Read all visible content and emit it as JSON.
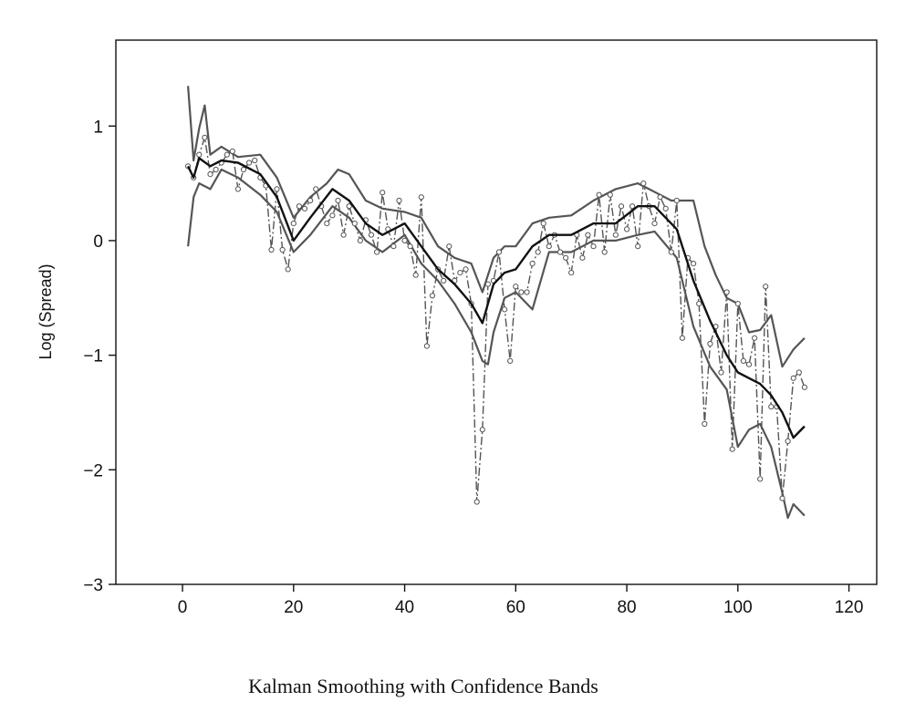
{
  "chart_data": {
    "type": "line",
    "title": "",
    "caption": "Kalman Smoothing with Confidence Bands",
    "xlabel": "",
    "ylabel": "Log (Spread)",
    "xlim": [
      -12,
      125
    ],
    "ylim": [
      -3,
      1.75
    ],
    "xticks": [
      0,
      20,
      40,
      60,
      80,
      100,
      120
    ],
    "yticks": [
      1,
      0,
      -1,
      -2,
      -3
    ],
    "xtick_labels": [
      "0",
      "20",
      "40",
      "60",
      "80",
      "100",
      "120"
    ],
    "ytick_labels": [
      "1",
      "0",
      "−1",
      "−2",
      "−3"
    ],
    "grid": false,
    "series": [
      {
        "style": "observed-dashdot-with-circles",
        "color": "#555555",
        "x": [
          1,
          2,
          3,
          4,
          5,
          6,
          7,
          8,
          9,
          10,
          11,
          12,
          13,
          14,
          15,
          16,
          17,
          18,
          19,
          20,
          21,
          22,
          23,
          24,
          25,
          26,
          27,
          28,
          29,
          30,
          31,
          32,
          33,
          34,
          35,
          36,
          37,
          38,
          39,
          40,
          41,
          42,
          43,
          44,
          45,
          46,
          47,
          48,
          49,
          50,
          51,
          52,
          53,
          54,
          55,
          56,
          57,
          58,
          59,
          60,
          61,
          62,
          63,
          64,
          65,
          66,
          67,
          68,
          69,
          70,
          71,
          72,
          73,
          74,
          75,
          76,
          77,
          78,
          79,
          80,
          81,
          82,
          83,
          84,
          85,
          86,
          87,
          88,
          89,
          90,
          91,
          92,
          93,
          94,
          95,
          96,
          97,
          98,
          99,
          100,
          101,
          102,
          103,
          104,
          105,
          106,
          107,
          108,
          109,
          110,
          111,
          112
        ],
        "y": [
          0.65,
          0.55,
          0.75,
          0.9,
          0.58,
          0.62,
          0.68,
          0.75,
          0.78,
          0.45,
          0.62,
          0.68,
          0.7,
          0.55,
          0.48,
          -0.08,
          0.45,
          -0.08,
          -0.25,
          0.15,
          0.3,
          0.28,
          0.35,
          0.45,
          0.3,
          0.15,
          0.22,
          0.35,
          0.05,
          0.3,
          0.15,
          0.0,
          0.18,
          0.05,
          -0.1,
          0.42,
          0.1,
          -0.05,
          0.35,
          0.0,
          -0.05,
          -0.3,
          0.38,
          -0.92,
          -0.48,
          -0.25,
          -0.35,
          -0.05,
          -0.35,
          -0.28,
          -0.25,
          -0.55,
          -2.28,
          -1.65,
          -0.38,
          -0.35,
          -0.1,
          -0.6,
          -1.05,
          -0.4,
          -0.45,
          -0.45,
          -0.2,
          -0.1,
          0.15,
          -0.05,
          0.05,
          -0.1,
          -0.15,
          -0.28,
          0.05,
          -0.15,
          0.05,
          -0.05,
          0.4,
          -0.1,
          0.4,
          0.05,
          0.3,
          0.1,
          0.3,
          -0.05,
          0.5,
          0.3,
          0.15,
          0.38,
          0.28,
          -0.1,
          0.35,
          -0.85,
          -0.15,
          -0.2,
          -0.55,
          -1.6,
          -0.9,
          -0.75,
          -1.15,
          -0.45,
          -1.82,
          -0.55,
          -1.05,
          -1.08,
          -0.85,
          -2.08,
          -0.4,
          -1.45,
          -1.45,
          -2.25,
          -1.75,
          -1.2,
          -1.15,
          -1.28
        ]
      },
      {
        "style": "smoothed",
        "color": "#111111",
        "x": [
          1,
          2,
          3,
          5,
          7,
          10,
          14,
          17,
          20,
          23,
          27,
          30,
          33,
          36,
          40,
          43,
          46,
          49,
          52,
          54,
          56,
          58,
          60,
          63,
          66,
          70,
          74,
          78,
          82,
          85,
          89,
          92,
          95,
          98,
          100,
          102,
          104,
          106,
          108,
          110,
          112
        ],
        "y": [
          0.65,
          0.55,
          0.72,
          0.65,
          0.7,
          0.68,
          0.58,
          0.38,
          0.0,
          0.2,
          0.45,
          0.35,
          0.15,
          0.05,
          0.15,
          -0.05,
          -0.25,
          -0.38,
          -0.55,
          -0.72,
          -0.38,
          -0.28,
          -0.25,
          -0.05,
          0.05,
          0.05,
          0.15,
          0.15,
          0.3,
          0.3,
          0.1,
          -0.35,
          -0.7,
          -1.0,
          -1.15,
          -1.2,
          -1.25,
          -1.35,
          -1.5,
          -1.72,
          -1.62
        ]
      },
      {
        "style": "upper-band",
        "color": "#555555",
        "x": [
          1,
          2,
          3,
          4,
          5,
          7,
          10,
          14,
          17,
          20,
          23,
          26,
          28,
          30,
          33,
          36,
          40,
          43,
          46,
          49,
          52,
          54,
          56,
          58,
          60,
          63,
          66,
          70,
          74,
          78,
          82,
          84,
          86,
          88,
          90,
          92,
          94,
          96,
          98,
          100,
          102,
          104,
          106,
          108,
          110,
          112
        ],
        "y": [
          1.35,
          0.7,
          0.98,
          1.18,
          0.75,
          0.82,
          0.73,
          0.75,
          0.55,
          0.2,
          0.38,
          0.5,
          0.62,
          0.58,
          0.35,
          0.28,
          0.25,
          0.2,
          -0.05,
          -0.15,
          -0.2,
          -0.45,
          -0.15,
          -0.05,
          -0.05,
          0.15,
          0.2,
          0.22,
          0.35,
          0.45,
          0.5,
          0.45,
          0.4,
          0.35,
          0.35,
          0.35,
          -0.05,
          -0.3,
          -0.5,
          -0.55,
          -0.8,
          -0.78,
          -0.65,
          -1.1,
          -0.95,
          -0.85
        ]
      },
      {
        "style": "lower-band",
        "color": "#555555",
        "x": [
          1,
          2,
          3,
          5,
          7,
          10,
          14,
          17,
          20,
          23,
          27,
          30,
          33,
          36,
          40,
          43,
          46,
          49,
          52,
          54,
          55,
          56,
          58,
          60,
          63,
          66,
          70,
          74,
          78,
          82,
          85,
          89,
          92,
          95,
          98,
          100,
          102,
          104,
          106,
          108,
          109,
          110,
          112
        ],
        "y": [
          -0.05,
          0.38,
          0.5,
          0.45,
          0.62,
          0.55,
          0.4,
          0.25,
          -0.1,
          0.05,
          0.3,
          0.2,
          0.0,
          -0.1,
          0.05,
          -0.2,
          -0.35,
          -0.55,
          -0.8,
          -1.05,
          -1.08,
          -0.8,
          -0.5,
          -0.45,
          -0.6,
          -0.1,
          -0.1,
          0.0,
          0.0,
          0.05,
          0.08,
          -0.15,
          -0.75,
          -1.1,
          -1.3,
          -1.8,
          -1.65,
          -1.6,
          -1.8,
          -2.2,
          -2.42,
          -2.3,
          -2.4
        ]
      }
    ]
  }
}
